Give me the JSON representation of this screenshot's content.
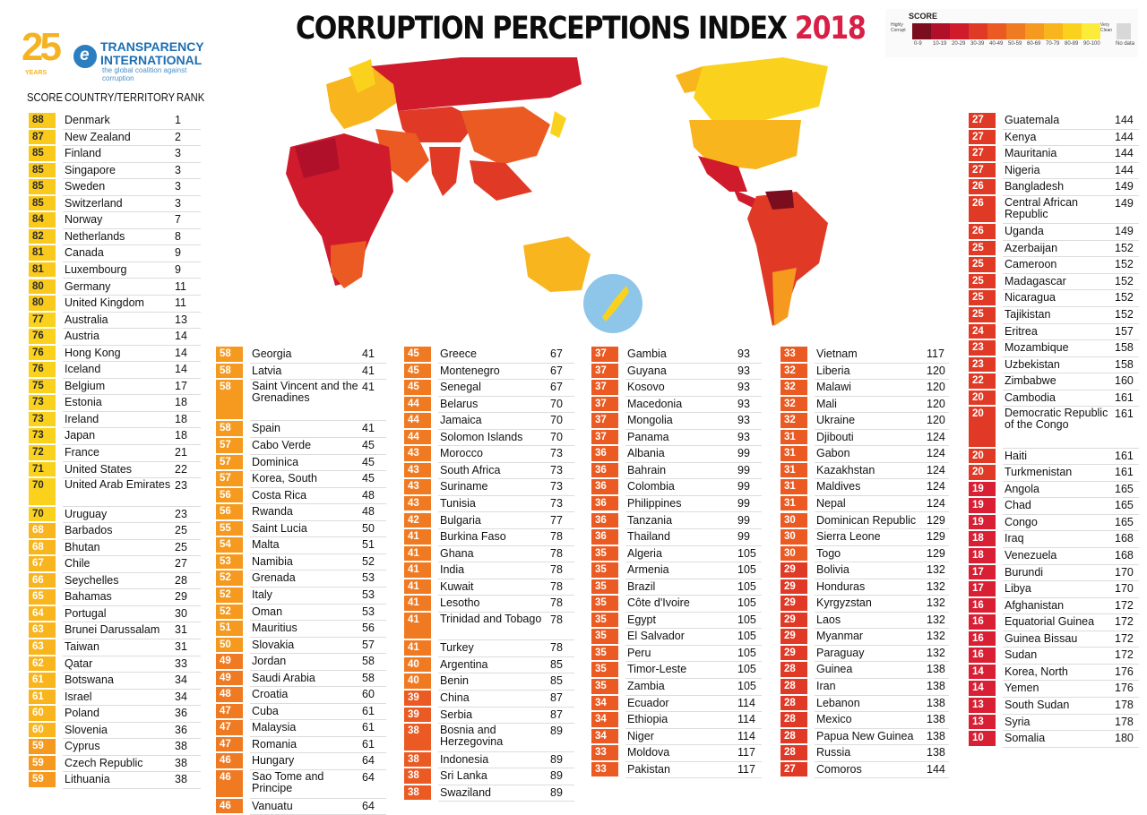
{
  "header": {
    "title": "CORRUPTION PERCEPTIONS INDEX ",
    "year": "2018"
  },
  "logo": {
    "number": "25",
    "years": "YEARS",
    "mark": "e",
    "line1": "TRANSPARENCY",
    "line2": "INTERNATIONAL",
    "tagline": "the global coalition against corruption"
  },
  "legend": {
    "title": "SCORE",
    "low_label": "Highly Corrupt",
    "high_label": "Very Clean",
    "nodata_label": "No data",
    "bins": [
      "0-9",
      "10-19",
      "20-29",
      "30-39",
      "40-49",
      "50-59",
      "60-69",
      "70-79",
      "80-89",
      "90-100"
    ],
    "colors": [
      "#7a0d1e",
      "#b0102a",
      "#cf1b2b",
      "#e03a26",
      "#ea5a22",
      "#f07a22",
      "#f59a1e",
      "#f8b51d",
      "#fad21e",
      "#fbec3c"
    ]
  },
  "columns": {
    "score": "SCORE",
    "country": "COUNTRY/TERRITORY",
    "rank": "RANK"
  },
  "chart_data": {
    "type": "table",
    "title": "CORRUPTION PERCEPTIONS INDEX 2018",
    "columns": [
      "SCORE",
      "COUNTRY/TERRITORY",
      "RANK"
    ],
    "rows": [
      [
        88,
        "Denmark",
        1
      ],
      [
        87,
        "New Zealand",
        2
      ],
      [
        85,
        "Finland",
        3
      ],
      [
        85,
        "Singapore",
        3
      ],
      [
        85,
        "Sweden",
        3
      ],
      [
        85,
        "Switzerland",
        3
      ],
      [
        84,
        "Norway",
        7
      ],
      [
        82,
        "Netherlands",
        8
      ],
      [
        81,
        "Canada",
        9
      ],
      [
        81,
        "Luxembourg",
        9
      ],
      [
        80,
        "Germany",
        11
      ],
      [
        80,
        "United Kingdom",
        11
      ],
      [
        77,
        "Australia",
        13
      ],
      [
        76,
        "Austria",
        14
      ],
      [
        76,
        "Hong Kong",
        14
      ],
      [
        76,
        "Iceland",
        14
      ],
      [
        75,
        "Belgium",
        17
      ],
      [
        73,
        "Estonia",
        18
      ],
      [
        73,
        "Ireland",
        18
      ],
      [
        73,
        "Japan",
        18
      ],
      [
        72,
        "France",
        21
      ],
      [
        71,
        "United States",
        22
      ],
      [
        70,
        "United Arab Emirates",
        23
      ],
      [
        70,
        "Uruguay",
        23
      ],
      [
        68,
        "Barbados",
        25
      ],
      [
        68,
        "Bhutan",
        25
      ],
      [
        67,
        "Chile",
        27
      ],
      [
        66,
        "Seychelles",
        28
      ],
      [
        65,
        "Bahamas",
        29
      ],
      [
        64,
        "Portugal",
        30
      ],
      [
        63,
        "Brunei Darussalam",
        31
      ],
      [
        63,
        "Taiwan",
        31
      ],
      [
        62,
        "Qatar",
        33
      ],
      [
        61,
        "Botswana",
        34
      ],
      [
        61,
        "Israel",
        34
      ],
      [
        60,
        "Poland",
        36
      ],
      [
        60,
        "Slovenia",
        36
      ],
      [
        59,
        "Cyprus",
        38
      ],
      [
        59,
        "Czech Republic",
        38
      ],
      [
        59,
        "Lithuania",
        38
      ],
      [
        58,
        "Georgia",
        41
      ],
      [
        58,
        "Latvia",
        41
      ],
      [
        58,
        "Saint Vincent and the Grenadines",
        41
      ],
      [
        58,
        "Spain",
        41
      ],
      [
        57,
        "Cabo Verde",
        45
      ],
      [
        57,
        "Dominica",
        45
      ],
      [
        57,
        "Korea, South",
        45
      ],
      [
        56,
        "Costa Rica",
        48
      ],
      [
        56,
        "Rwanda",
        48
      ],
      [
        55,
        "Saint Lucia",
        50
      ],
      [
        54,
        "Malta",
        51
      ],
      [
        53,
        "Namibia",
        52
      ],
      [
        52,
        "Grenada",
        53
      ],
      [
        52,
        "Italy",
        53
      ],
      [
        52,
        "Oman",
        53
      ],
      [
        51,
        "Mauritius",
        56
      ],
      [
        50,
        "Slovakia",
        57
      ],
      [
        49,
        "Jordan",
        58
      ],
      [
        49,
        "Saudi Arabia",
        58
      ],
      [
        48,
        "Croatia",
        60
      ],
      [
        47,
        "Cuba",
        61
      ],
      [
        47,
        "Malaysia",
        61
      ],
      [
        47,
        "Romania",
        61
      ],
      [
        46,
        "Hungary",
        64
      ],
      [
        46,
        "Sao Tome and Principe",
        64
      ],
      [
        46,
        "Vanuatu",
        64
      ],
      [
        45,
        "Greece",
        67
      ],
      [
        45,
        "Montenegro",
        67
      ],
      [
        45,
        "Senegal",
        67
      ],
      [
        44,
        "Belarus",
        70
      ],
      [
        44,
        "Jamaica",
        70
      ],
      [
        44,
        "Solomon Islands",
        70
      ],
      [
        43,
        "Morocco",
        73
      ],
      [
        43,
        "South Africa",
        73
      ],
      [
        43,
        "Suriname",
        73
      ],
      [
        43,
        "Tunisia",
        73
      ],
      [
        42,
        "Bulgaria",
        77
      ],
      [
        41,
        "Burkina Faso",
        78
      ],
      [
        41,
        "Ghana",
        78
      ],
      [
        41,
        "India",
        78
      ],
      [
        41,
        "Kuwait",
        78
      ],
      [
        41,
        "Lesotho",
        78
      ],
      [
        41,
        "Trinidad and Tobago",
        78
      ],
      [
        41,
        "Turkey",
        78
      ],
      [
        40,
        "Argentina",
        85
      ],
      [
        40,
        "Benin",
        85
      ],
      [
        39,
        "China",
        87
      ],
      [
        39,
        "Serbia",
        87
      ],
      [
        38,
        "Bosnia and Herzegovina",
        89
      ],
      [
        38,
        "Indonesia",
        89
      ],
      [
        38,
        "Sri Lanka",
        89
      ],
      [
        38,
        "Swaziland",
        89
      ],
      [
        37,
        "Gambia",
        93
      ],
      [
        37,
        "Guyana",
        93
      ],
      [
        37,
        "Kosovo",
        93
      ],
      [
        37,
        "Macedonia",
        93
      ],
      [
        37,
        "Mongolia",
        93
      ],
      [
        37,
        "Panama",
        93
      ],
      [
        36,
        "Albania",
        99
      ],
      [
        36,
        "Bahrain",
        99
      ],
      [
        36,
        "Colombia",
        99
      ],
      [
        36,
        "Philippines",
        99
      ],
      [
        36,
        "Tanzania",
        99
      ],
      [
        36,
        "Thailand",
        99
      ],
      [
        35,
        "Algeria",
        105
      ],
      [
        35,
        "Armenia",
        105
      ],
      [
        35,
        "Brazil",
        105
      ],
      [
        35,
        "Côte d'Ivoire",
        105
      ],
      [
        35,
        "Egypt",
        105
      ],
      [
        35,
        "El Salvador",
        105
      ],
      [
        35,
        "Peru",
        105
      ],
      [
        35,
        "Timor-Leste",
        105
      ],
      [
        35,
        "Zambia",
        105
      ],
      [
        34,
        "Ecuador",
        114
      ],
      [
        34,
        "Ethiopia",
        114
      ],
      [
        34,
        "Niger",
        114
      ],
      [
        33,
        "Moldova",
        117
      ],
      [
        33,
        "Pakistan",
        117
      ],
      [
        33,
        "Vietnam",
        117
      ],
      [
        32,
        "Liberia",
        120
      ],
      [
        32,
        "Malawi",
        120
      ],
      [
        32,
        "Mali",
        120
      ],
      [
        32,
        "Ukraine",
        120
      ],
      [
        31,
        "Djibouti",
        124
      ],
      [
        31,
        "Gabon",
        124
      ],
      [
        31,
        "Kazakhstan",
        124
      ],
      [
        31,
        "Maldives",
        124
      ],
      [
        31,
        "Nepal",
        124
      ],
      [
        30,
        "Dominican Republic",
        129
      ],
      [
        30,
        "Sierra Leone",
        129
      ],
      [
        30,
        "Togo",
        129
      ],
      [
        29,
        "Bolivia",
        132
      ],
      [
        29,
        "Honduras",
        132
      ],
      [
        29,
        "Kyrgyzstan",
        132
      ],
      [
        29,
        "Laos",
        132
      ],
      [
        29,
        "Myanmar",
        132
      ],
      [
        29,
        "Paraguay",
        132
      ],
      [
        28,
        "Guinea",
        138
      ],
      [
        28,
        "Iran",
        138
      ],
      [
        28,
        "Lebanon",
        138
      ],
      [
        28,
        "Mexico",
        138
      ],
      [
        28,
        "Papua New Guinea",
        138
      ],
      [
        28,
        "Russia",
        138
      ],
      [
        27,
        "Comoros",
        144
      ],
      [
        27,
        "Guatemala",
        144
      ],
      [
        27,
        "Kenya",
        144
      ],
      [
        27,
        "Mauritania",
        144
      ],
      [
        27,
        "Nigeria",
        144
      ],
      [
        26,
        "Bangladesh",
        149
      ],
      [
        26,
        "Central African Republic",
        149
      ],
      [
        26,
        "Uganda",
        149
      ],
      [
        25,
        "Azerbaijan",
        152
      ],
      [
        25,
        "Cameroon",
        152
      ],
      [
        25,
        "Madagascar",
        152
      ],
      [
        25,
        "Nicaragua",
        152
      ],
      [
        25,
        "Tajikistan",
        152
      ],
      [
        24,
        "Eritrea",
        157
      ],
      [
        23,
        "Mozambique",
        158
      ],
      [
        23,
        "Uzbekistan",
        158
      ],
      [
        22,
        "Zimbabwe",
        160
      ],
      [
        20,
        "Cambodia",
        161
      ],
      [
        20,
        "Democratic Republic of the Congo",
        161
      ],
      [
        20,
        "Haiti",
        161
      ],
      [
        20,
        "Turkmenistan",
        161
      ],
      [
        19,
        "Angola",
        165
      ],
      [
        19,
        "Chad",
        165
      ],
      [
        19,
        "Congo",
        165
      ],
      [
        18,
        "Iraq",
        168
      ],
      [
        18,
        "Venezuela",
        168
      ],
      [
        17,
        "Burundi",
        170
      ],
      [
        17,
        "Libya",
        170
      ],
      [
        16,
        "Afghanistan",
        172
      ],
      [
        16,
        "Equatorial Guinea",
        172
      ],
      [
        16,
        "Guinea Bissau",
        172
      ],
      [
        16,
        "Sudan",
        172
      ],
      [
        14,
        "Korea, North",
        176
      ],
      [
        14,
        "Yemen",
        176
      ],
      [
        13,
        "South Sudan",
        178
      ],
      [
        13,
        "Syria",
        178
      ],
      [
        10,
        "Somalia",
        180
      ]
    ]
  }
}
